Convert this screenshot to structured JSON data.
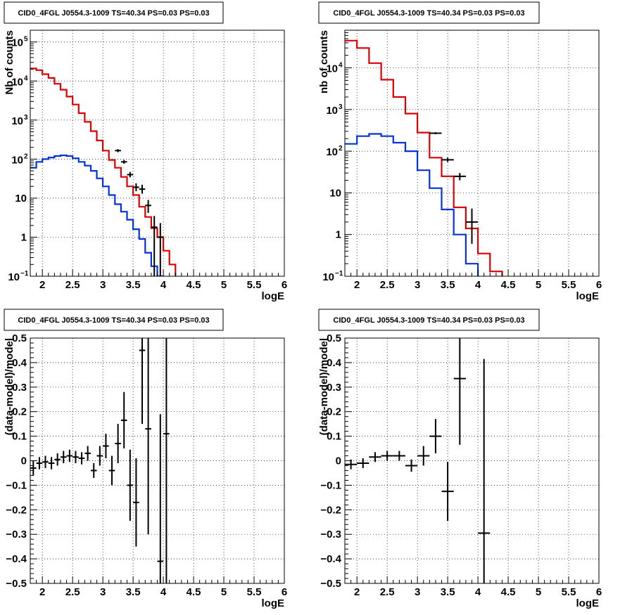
{
  "chart_data": [
    {
      "type": "histogram",
      "title": "CID0_4FGL J0554.3-1009 TS=40.34 PS=0.03 PS=0.03",
      "xlabel": "logE",
      "ylabel": "Nb of counts",
      "xlim": [
        1.8,
        6.0
      ],
      "ylim": [
        0.1,
        200000
      ],
      "yscale": "log",
      "grid": true,
      "x_ticks": [
        "2",
        "2.5",
        "3",
        "3.5",
        "4",
        "4.5",
        "5",
        "5.5",
        "6"
      ],
      "y_ticks": [
        {
          "value": 0.1,
          "base": "10",
          "exp": "−1"
        },
        {
          "value": 1,
          "label": "1"
        },
        {
          "value": 10,
          "label": "10"
        },
        {
          "value": 100,
          "base": "10",
          "exp": "2"
        },
        {
          "value": 1000,
          "base": "10",
          "exp": "3"
        },
        {
          "value": 10000,
          "base": "10",
          "exp": "4"
        },
        {
          "value": 100000,
          "base": "10",
          "exp": "5"
        }
      ],
      "bin_edges": [
        1.8,
        1.9,
        2.0,
        2.1,
        2.2,
        2.3,
        2.4,
        2.5,
        2.6,
        2.7,
        2.8,
        2.9,
        3.0,
        3.1,
        3.2,
        3.3,
        3.4,
        3.5,
        3.6,
        3.7,
        3.8,
        3.9,
        4.0,
        4.1,
        4.2,
        4.3,
        4.4,
        4.5,
        4.6,
        4.7,
        4.8,
        4.9,
        5.0,
        5.1,
        5.2,
        5.3,
        5.4,
        5.5,
        5.6,
        5.7,
        5.8,
        5.9,
        6.0
      ],
      "series": [
        {
          "color": "#dd0000",
          "kind": "step",
          "values": [
            21000,
            19000,
            15000,
            12000,
            8500,
            6000,
            4000,
            2500,
            1500,
            900,
            520,
            300,
            165,
            95,
            60,
            35,
            20,
            12,
            6,
            3.3,
            1.7,
            1.0,
            0.45,
            0.2,
            0.09,
            0.09,
            0.09,
            0.09,
            0.09,
            0.09,
            0.09,
            0.09,
            0.09,
            0.09,
            0.09,
            0.09,
            0.09,
            0.09,
            0.09,
            0.09,
            0.09,
            0.09
          ]
        },
        {
          "color": "#0033dd",
          "kind": "step",
          "values": [
            60,
            85,
            100,
            110,
            120,
            125,
            120,
            105,
            85,
            68,
            50,
            32,
            20,
            12,
            7,
            4.5,
            2.8,
            1.6,
            0.9,
            0.4,
            0.18,
            0.1,
            0.09,
            0.09,
            0.09,
            0.09,
            0.09,
            0.09,
            0.09,
            0.09,
            0.09,
            0.09,
            0.09,
            0.09,
            0.09,
            0.09,
            0.09,
            0.09,
            0.09,
            0.09,
            0.09,
            0.09
          ]
        },
        {
          "color": "#000000",
          "kind": "errorbar",
          "points": [
            {
              "x": 3.25,
              "y": 165,
              "xerr": 0.05,
              "ylo": 150,
              "yhi": 180
            },
            {
              "x": 3.35,
              "y": 85,
              "xerr": 0.05,
              "ylo": 76,
              "yhi": 95
            },
            {
              "x": 3.45,
              "y": 40,
              "xerr": 0.05,
              "ylo": 34,
              "yhi": 47
            },
            {
              "x": 3.55,
              "y": 19,
              "xerr": 0.05,
              "ylo": 15,
              "yhi": 24
            },
            {
              "x": 3.65,
              "y": 17,
              "xerr": 0.05,
              "ylo": 13,
              "yhi": 22
            },
            {
              "x": 3.75,
              "y": 6.5,
              "xerr": 0.05,
              "ylo": 4.2,
              "yhi": 9
            },
            {
              "x": 3.85,
              "y": 1.8,
              "xerr": 0.05,
              "ylo": 0.09,
              "yhi": 3.5
            },
            {
              "x": 3.95,
              "y": 1.0,
              "xerr": 0.05,
              "ylo": 0.09,
              "yhi": 2.3
            }
          ]
        }
      ]
    },
    {
      "type": "histogram",
      "title": "CID0_4FGL J0554.3-1009 TS=40.34 PS=0.03 PS=0.03",
      "xlabel": "logE",
      "ylabel": "nb of counts",
      "xlim": [
        1.8,
        6.0
      ],
      "ylim": [
        0.1,
        80000
      ],
      "yscale": "log",
      "grid": true,
      "x_ticks": [
        "2",
        "2.5",
        "3",
        "3.5",
        "4",
        "4.5",
        "5",
        "5.5",
        "6"
      ],
      "y_ticks": [
        {
          "value": 0.1,
          "base": "10",
          "exp": "−1"
        },
        {
          "value": 1,
          "label": "1"
        },
        {
          "value": 10,
          "label": "10"
        },
        {
          "value": 100,
          "base": "10",
          "exp": "2"
        },
        {
          "value": 1000,
          "base": "10",
          "exp": "3"
        },
        {
          "value": 10000,
          "base": "10",
          "exp": "4"
        }
      ],
      "bin_edges": [
        1.8,
        2.0,
        2.2,
        2.4,
        2.6,
        2.8,
        3.0,
        3.2,
        3.4,
        3.6,
        3.8,
        4.0,
        4.2,
        4.4,
        4.6,
        4.8,
        5.0,
        5.2,
        5.4,
        5.6,
        5.8,
        6.0
      ],
      "series": [
        {
          "color": "#dd0000",
          "kind": "step",
          "values": [
            45000,
            30000,
            13000,
            5200,
            2000,
            800,
            280,
            70,
            25,
            4.5,
            1.4,
            0.35,
            0.13,
            0.09,
            0.09,
            0.09,
            0.09,
            0.09,
            0.09,
            0.09,
            0.09
          ]
        },
        {
          "color": "#0033dd",
          "kind": "step",
          "values": [
            150,
            230,
            260,
            230,
            160,
            100,
            35,
            13,
            4,
            1.0,
            0.2,
            0.09,
            0.09,
            0.09,
            0.09,
            0.09,
            0.09,
            0.09,
            0.09,
            0.09,
            0.09
          ]
        },
        {
          "color": "#000000",
          "kind": "errorbar",
          "points": [
            {
              "x": 3.3,
              "y": 270,
              "xerr": 0.1,
              "ylo": 255,
              "yhi": 285
            },
            {
              "x": 3.5,
              "y": 62,
              "xerr": 0.1,
              "ylo": 55,
              "yhi": 70
            },
            {
              "x": 3.7,
              "y": 25,
              "xerr": 0.1,
              "ylo": 20,
              "yhi": 30
            },
            {
              "x": 3.9,
              "y": 2.0,
              "xerr": 0.1,
              "ylo": 0.6,
              "yhi": 4.2
            }
          ]
        }
      ]
    },
    {
      "type": "scatter",
      "title": "CID0_4FGL J0554.3-1009 TS=40.34 PS=0.03 PS=0.03",
      "xlabel": "logE",
      "ylabel": "(data-model)/model",
      "xlim": [
        1.8,
        6.0
      ],
      "ylim": [
        -0.5,
        0.5
      ],
      "yscale": "linear",
      "grid": true,
      "x_ticks": [
        "2",
        "2.5",
        "3",
        "3.5",
        "4",
        "4.5",
        "5",
        "5.5",
        "6"
      ],
      "y_ticks": [
        "−0.5",
        "−0.4",
        "−0.3",
        "−0.2",
        "−0.1",
        "0",
        "0.1",
        "0.2",
        "0.3",
        "0.4",
        "0.5"
      ],
      "series": [
        {
          "color": "#000000",
          "kind": "errorbar",
          "points": [
            {
              "x": 1.85,
              "y": -0.03,
              "xerr": 0.05,
              "err": 0.03
            },
            {
              "x": 1.95,
              "y": -0.01,
              "xerr": 0.05,
              "err": 0.025
            },
            {
              "x": 2.05,
              "y": -0.005,
              "xerr": 0.05,
              "err": 0.025
            },
            {
              "x": 2.15,
              "y": -0.01,
              "xerr": 0.05,
              "err": 0.025
            },
            {
              "x": 2.25,
              "y": 0.005,
              "xerr": 0.05,
              "err": 0.025
            },
            {
              "x": 2.35,
              "y": 0.015,
              "xerr": 0.05,
              "err": 0.025
            },
            {
              "x": 2.45,
              "y": 0.02,
              "xerr": 0.05,
              "err": 0.025
            },
            {
              "x": 2.55,
              "y": 0.015,
              "xerr": 0.05,
              "err": 0.025
            },
            {
              "x": 2.65,
              "y": 0.01,
              "xerr": 0.05,
              "err": 0.025
            },
            {
              "x": 2.75,
              "y": 0.03,
              "xerr": 0.05,
              "err": 0.03
            },
            {
              "x": 2.85,
              "y": -0.04,
              "xerr": 0.05,
              "err": 0.03
            },
            {
              "x": 2.95,
              "y": 0.02,
              "xerr": 0.05,
              "err": 0.04
            },
            {
              "x": 3.05,
              "y": 0.06,
              "xerr": 0.05,
              "err": 0.05
            },
            {
              "x": 3.15,
              "y": -0.04,
              "xerr": 0.05,
              "err": 0.06
            },
            {
              "x": 3.25,
              "y": 0.07,
              "xerr": 0.05,
              "err": 0.08
            },
            {
              "x": 3.35,
              "y": 0.165,
              "xerr": 0.05,
              "err": 0.115
            },
            {
              "x": 3.45,
              "y": -0.1,
              "xerr": 0.05,
              "err": 0.145
            },
            {
              "x": 3.55,
              "y": -0.17,
              "xerr": 0.05,
              "err": 0.18
            },
            {
              "x": 3.65,
              "y": 0.45,
              "xerr": 0.05,
              "err": 0.3
            },
            {
              "x": 3.75,
              "y": 0.13,
              "xerr": 0.05,
              "err": 0.43
            },
            {
              "x": 3.95,
              "y": -0.41,
              "xerr": 0.05,
              "err": 0.6
            },
            {
              "x": 4.05,
              "y": 0.11,
              "xerr": 0.05,
              "err": 0.8
            }
          ]
        }
      ]
    },
    {
      "type": "scatter",
      "title": "CID0_4FGL J0554.3-1009 TS=40.34 PS=0.03 PS=0.03",
      "xlabel": "logE",
      "ylabel": "(data-model)/model",
      "xlim": [
        1.8,
        6.0
      ],
      "ylim": [
        -0.5,
        0.5
      ],
      "yscale": "linear",
      "grid": true,
      "x_ticks": [
        "2",
        "2.5",
        "3",
        "3.5",
        "4",
        "4.5",
        "5",
        "5.5",
        "6"
      ],
      "y_ticks": [
        "−0.5",
        "−0.4",
        "−0.3",
        "−0.2",
        "−0.1",
        "0",
        "0.1",
        "0.2",
        "0.3",
        "0.4",
        "0.5"
      ],
      "series": [
        {
          "color": "#000000",
          "kind": "errorbar",
          "points": [
            {
              "x": 1.9,
              "y": -0.015,
              "xerr": 0.1,
              "err": 0.02
            },
            {
              "x": 2.1,
              "y": -0.01,
              "xerr": 0.1,
              "err": 0.02
            },
            {
              "x": 2.3,
              "y": 0.015,
              "xerr": 0.1,
              "err": 0.02
            },
            {
              "x": 2.5,
              "y": 0.02,
              "xerr": 0.1,
              "err": 0.02
            },
            {
              "x": 2.7,
              "y": 0.02,
              "xerr": 0.1,
              "err": 0.02
            },
            {
              "x": 2.9,
              "y": -0.02,
              "xerr": 0.1,
              "err": 0.025
            },
            {
              "x": 3.1,
              "y": 0.02,
              "xerr": 0.1,
              "err": 0.04
            },
            {
              "x": 3.3,
              "y": 0.1,
              "xerr": 0.1,
              "err": 0.07
            },
            {
              "x": 3.5,
              "y": -0.125,
              "xerr": 0.1,
              "err": 0.12
            },
            {
              "x": 3.7,
              "y": 0.335,
              "xerr": 0.1,
              "err": 0.27
            },
            {
              "x": 4.1,
              "y": -0.295,
              "xerr": 0.1,
              "err": 0.71
            }
          ]
        }
      ]
    }
  ]
}
